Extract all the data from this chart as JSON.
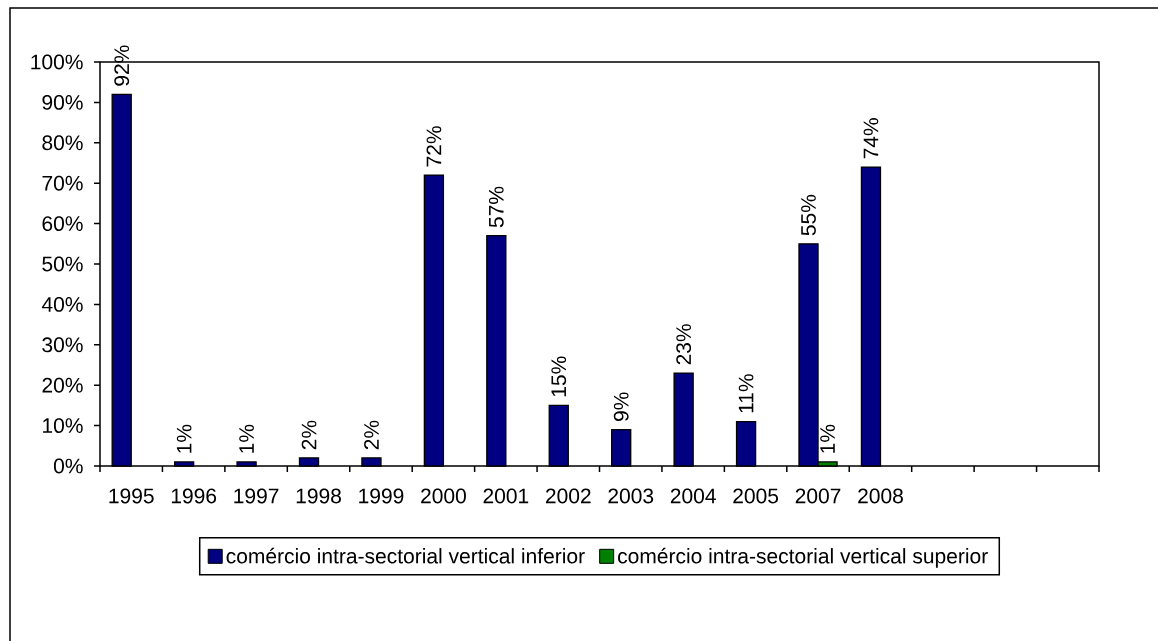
{
  "chart_data": {
    "type": "bar",
    "categories": [
      "1995",
      "1996",
      "1997",
      "1998",
      "1999",
      "2000",
      "2001",
      "2002",
      "2003",
      "2004",
      "2005",
      "2007",
      "2008",
      null,
      null,
      null
    ],
    "series": [
      {
        "name": "comércio intra-sectorial vertical inferior",
        "color": "#000080",
        "values": [
          92,
          1,
          1,
          2,
          2,
          72,
          57,
          15,
          9,
          23,
          11,
          55,
          74,
          null,
          null,
          null
        ],
        "value_labels": [
          "92%",
          "1%",
          "1%",
          "2%",
          "2%",
          "72%",
          "57%",
          "15%",
          "9%",
          "23%",
          "11%",
          "55%",
          "74%",
          null,
          null,
          null
        ]
      },
      {
        "name": "comércio intra-sectorial vertical superior",
        "color": "#008000",
        "values": [
          null,
          null,
          null,
          null,
          null,
          null,
          null,
          null,
          null,
          null,
          null,
          1,
          null,
          null,
          null,
          null
        ],
        "value_labels": [
          null,
          null,
          null,
          null,
          null,
          null,
          null,
          null,
          null,
          null,
          null,
          "1%",
          null,
          null,
          null,
          null
        ]
      }
    ],
    "ylim": [
      0,
      100
    ],
    "yticks": [
      {
        "value": 0,
        "label": "0%"
      },
      {
        "value": 10,
        "label": "10%"
      },
      {
        "value": 20,
        "label": "20%"
      },
      {
        "value": 30,
        "label": "30%"
      },
      {
        "value": 40,
        "label": "40%"
      },
      {
        "value": 50,
        "label": "50%"
      },
      {
        "value": 60,
        "label": "60%"
      },
      {
        "value": 70,
        "label": "70%"
      },
      {
        "value": 80,
        "label": "80%"
      },
      {
        "value": 90,
        "label": "90%"
      },
      {
        "value": 100,
        "label": "100%"
      }
    ],
    "legend": "bottom"
  }
}
